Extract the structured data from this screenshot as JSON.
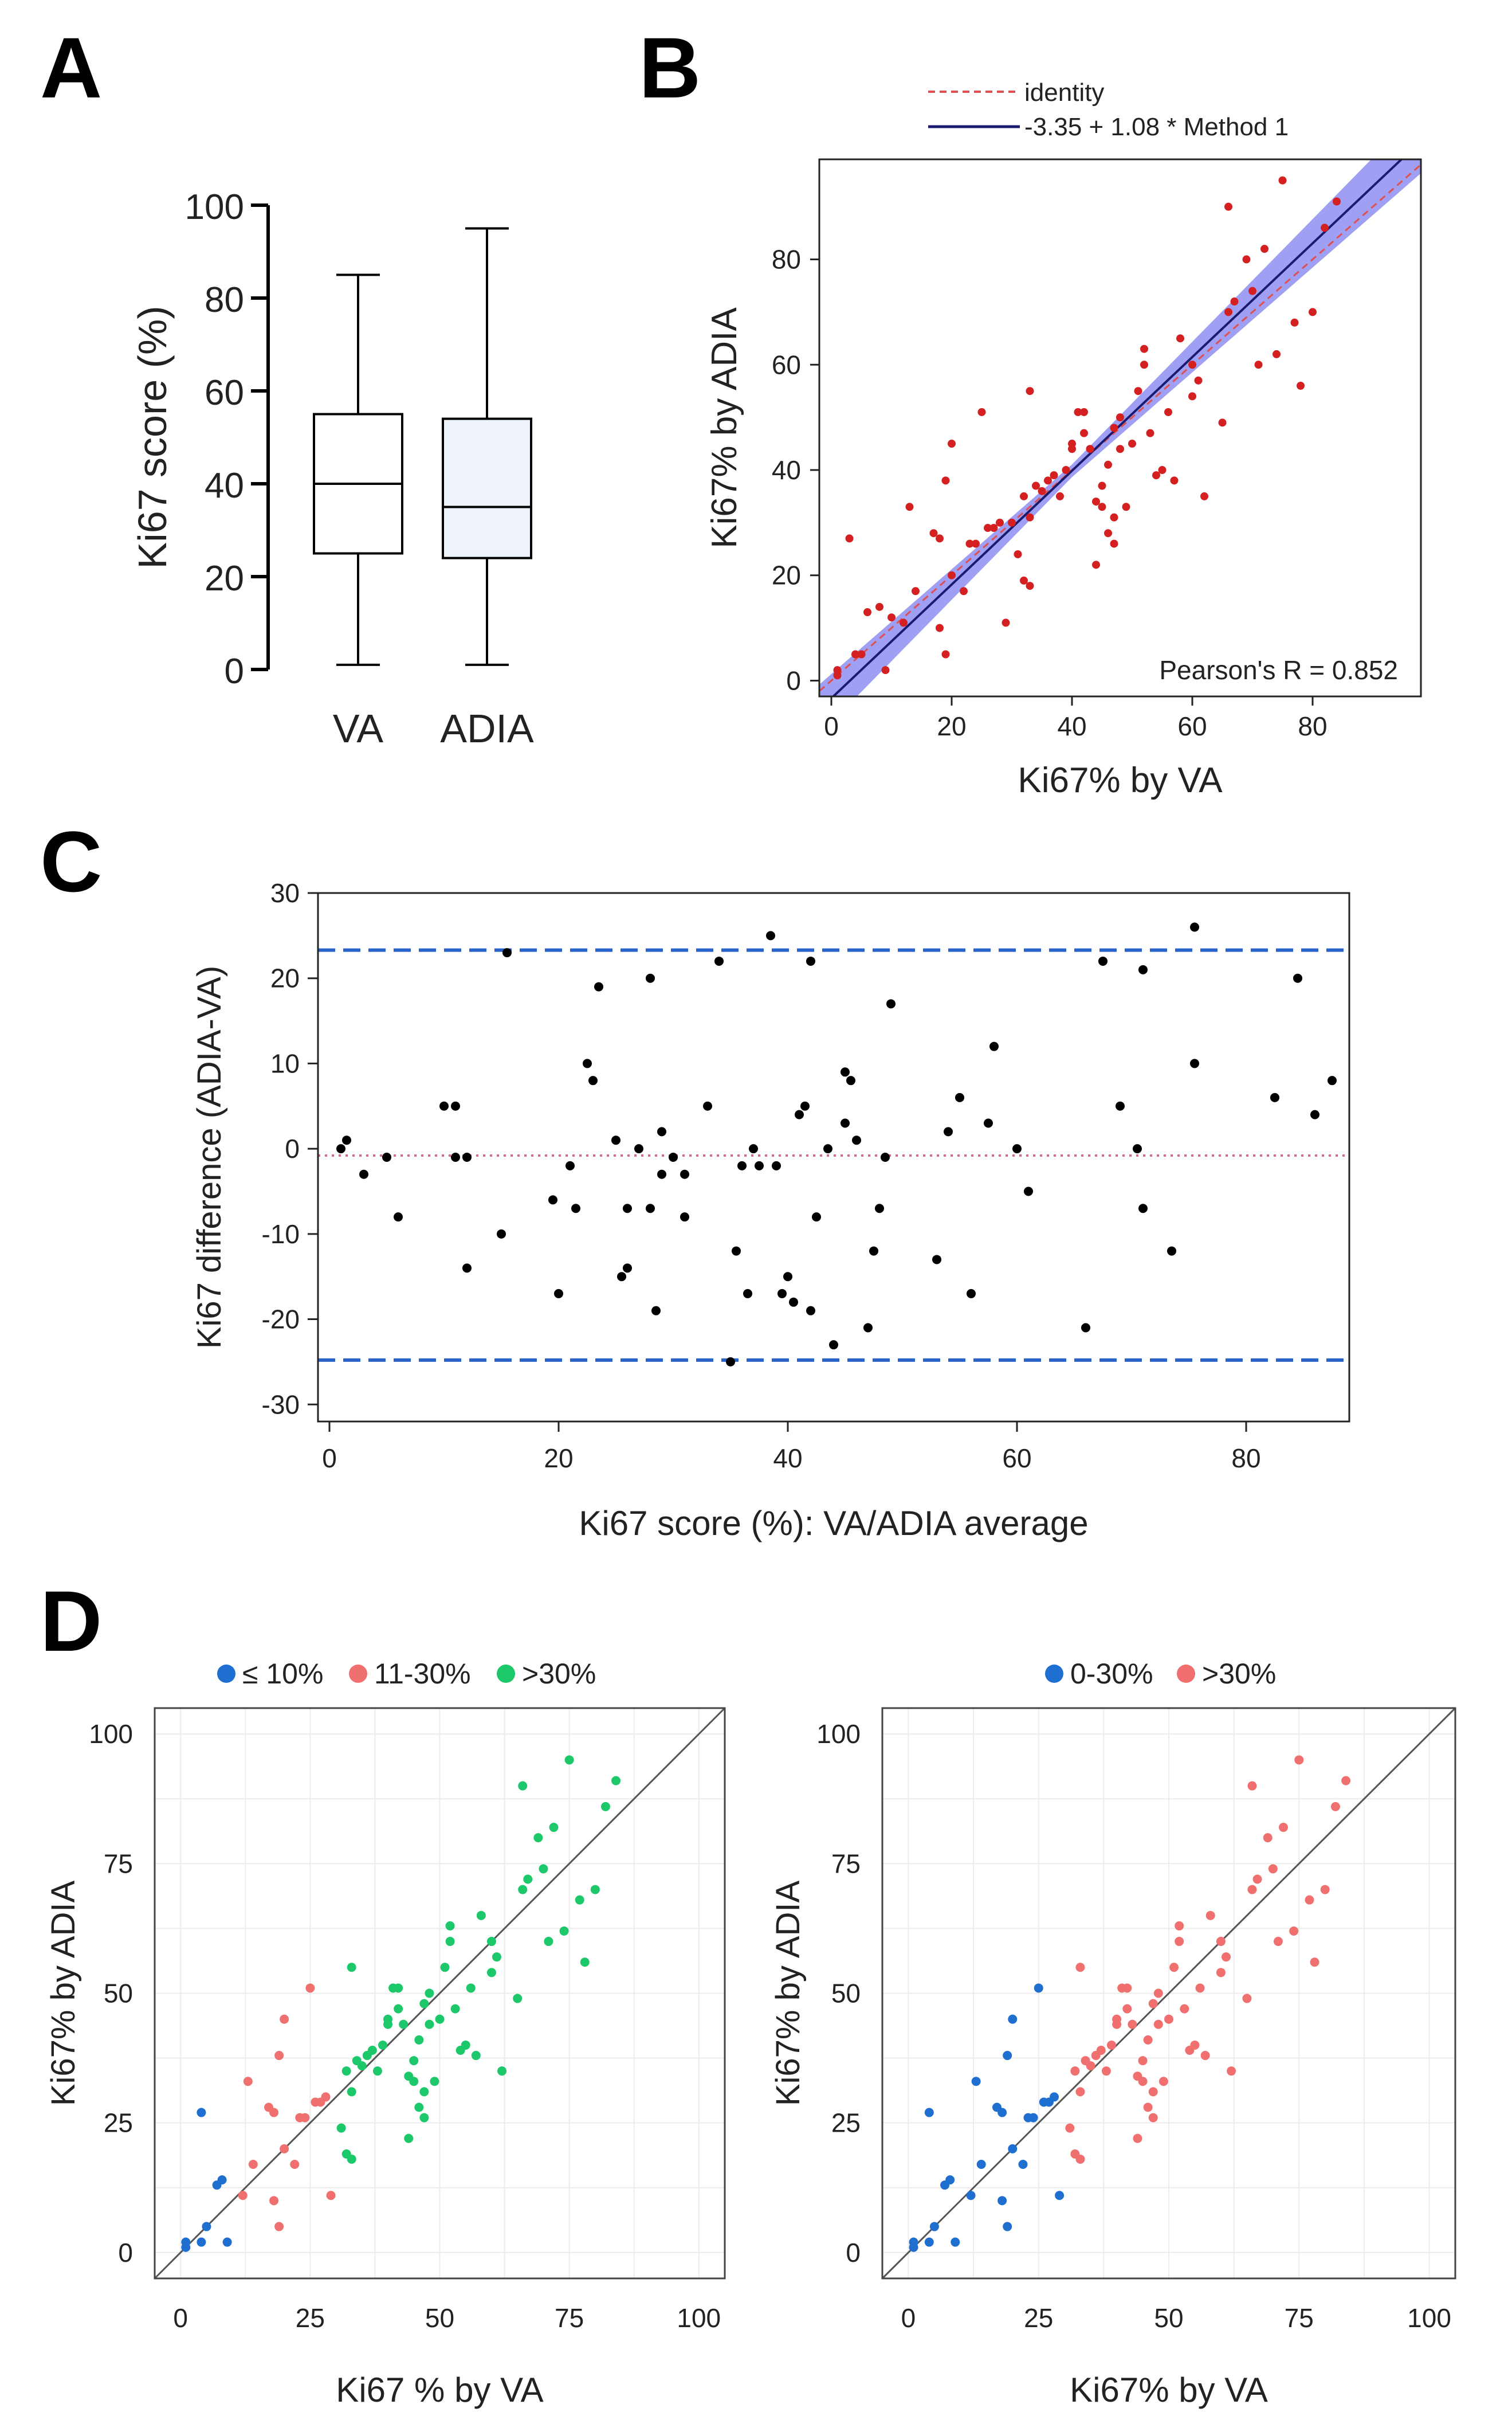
{
  "chart_data": [
    {
      "panel": "A",
      "type": "box",
      "ylabel": "Ki67 score (%)",
      "ylim": [
        0,
        100
      ],
      "yticks": [
        0,
        20,
        40,
        60,
        80,
        100
      ],
      "categories": [
        "VA",
        "ADIA"
      ],
      "boxes": [
        {
          "name": "VA",
          "min": 1,
          "q1": 25,
          "median": 40,
          "q3": 55,
          "max": 85,
          "fill": "#ffffff"
        },
        {
          "name": "ADIA",
          "min": 1,
          "q1": 24,
          "median": 35,
          "q3": 54,
          "max": 95,
          "fill": "#eef4fa"
        }
      ]
    },
    {
      "panel": "B",
      "type": "scatter",
      "xlabel": "Ki67% by VA",
      "ylabel": "Ki67% by ADIA",
      "xlim": [
        -2,
        98
      ],
      "ylim": [
        -3,
        99
      ],
      "xticks": [
        0,
        20,
        40,
        60,
        80
      ],
      "yticks": [
        0,
        20,
        40,
        60,
        80
      ],
      "legend": [
        {
          "label": "identity",
          "color": "#e05050",
          "style": "dashed"
        },
        {
          "label": "-3.35 + 1.08 * Method 1",
          "color": "#1a1a6e",
          "style": "solid"
        }
      ],
      "regression": {
        "intercept": -3.35,
        "slope": 1.08,
        "band_color": "#7f7fef"
      },
      "annotation": "Pearson's R = 0.852",
      "point_color": "#d42020",
      "x": [
        1,
        1,
        3,
        4,
        5,
        6,
        8,
        9,
        10,
        12,
        13,
        14,
        17,
        18,
        18,
        19,
        19,
        20,
        20,
        22,
        23,
        24,
        25,
        26,
        27,
        28,
        29,
        30,
        31,
        32,
        32,
        33,
        33,
        33,
        34,
        35,
        36,
        37,
        38,
        39,
        40,
        40,
        41,
        42,
        42,
        43,
        44,
        44,
        45,
        45,
        46,
        46,
        47,
        47,
        47,
        48,
        48,
        49,
        50,
        51,
        52,
        52,
        53,
        54,
        55,
        56,
        57,
        58,
        60,
        60,
        61,
        62,
        65,
        66,
        66,
        67,
        69,
        70,
        71,
        72,
        74,
        75,
        77,
        78,
        80,
        82,
        84
      ],
      "y": [
        1,
        2,
        27,
        5,
        5,
        13,
        14,
        2,
        12,
        11,
        33,
        17,
        28,
        10,
        27,
        5,
        38,
        45,
        20,
        17,
        26,
        26,
        51,
        29,
        29,
        30,
        11,
        30,
        24,
        19,
        35,
        18,
        55,
        31,
        37,
        36,
        38,
        39,
        35,
        40,
        45,
        44,
        51,
        51,
        47,
        44,
        34,
        22,
        33,
        37,
        41,
        28,
        26,
        48,
        31,
        50,
        44,
        33,
        45,
        55,
        63,
        60,
        47,
        39,
        40,
        51,
        38,
        65,
        54,
        60,
        57,
        35,
        49,
        70,
        90,
        72,
        80,
        74,
        60,
        82,
        62,
        95,
        68,
        56,
        70,
        86,
        91
      ]
    },
    {
      "panel": "C",
      "type": "scatter",
      "xlabel": "Ki67 score (%): VA/ADIA average",
      "ylabel": "Ki67 difference (ADIA-VA)",
      "xlim": [
        -1,
        89
      ],
      "ylim": [
        -32,
        30
      ],
      "xticks": [
        0,
        20,
        40,
        60,
        80
      ],
      "yticks": [
        30,
        20,
        10,
        0,
        -10,
        -20,
        -30
      ],
      "reference_lines": [
        {
          "y": 23.3,
          "color": "#2962c8",
          "style": "dashed"
        },
        {
          "y": -24.8,
          "color": "#2962c8",
          "style": "dashed"
        },
        {
          "y": -0.8,
          "color": "#d06a80",
          "style": "dotted"
        }
      ],
      "point_color": "#000000",
      "x": [
        1,
        1.5,
        3,
        5,
        6,
        10,
        11,
        11,
        12,
        12,
        15,
        15.5,
        19.5,
        20,
        21,
        21.5,
        22.5,
        23,
        23.5,
        25,
        25.5,
        26,
        26,
        27,
        28,
        28,
        28.5,
        29,
        29,
        30,
        31,
        31,
        33,
        34,
        35,
        35.5,
        36,
        36.5,
        37,
        37.5,
        38.5,
        39,
        39.5,
        40,
        40.5,
        41,
        41.5,
        42,
        42,
        42.5,
        43.5,
        44,
        45,
        45,
        45.5,
        46,
        47,
        47.5,
        48,
        48.5,
        49,
        53,
        54,
        55,
        56,
        57.5,
        58,
        60,
        61,
        66,
        67.5,
        69,
        70.5,
        71,
        71,
        73.5,
        75.5,
        75.5,
        82.5,
        84.5,
        86,
        87.5
      ],
      "y": [
        0,
        1,
        -3,
        -1,
        -8,
        5,
        5,
        -1,
        -14,
        -1,
        -10,
        23,
        -6,
        -17,
        -2,
        -7,
        10,
        8,
        19,
        1,
        -15,
        -14,
        -7,
        0,
        -7,
        20,
        -19,
        -3,
        2,
        -1,
        -8,
        -3,
        5,
        22,
        -25,
        -12,
        -2,
        -17,
        0,
        -2,
        25,
        -2,
        -17,
        -15,
        -18,
        4,
        5,
        -19,
        22,
        -8,
        0,
        -23,
        3,
        9,
        8,
        1,
        -21,
        -12,
        -7,
        -1,
        17,
        -13,
        2,
        6,
        -17,
        3,
        12,
        0,
        -5,
        -21,
        22,
        5,
        0,
        21,
        -7,
        -12,
        26,
        10,
        6,
        20,
        4,
        8
      ]
    },
    {
      "panel": "D-left",
      "type": "scatter",
      "xlabel": "Ki67 % by VA",
      "ylabel": "Ki67% by ADIA",
      "xlim": [
        -5,
        105
      ],
      "ylim": [
        -5,
        105
      ],
      "xticks": [
        0,
        25,
        50,
        75,
        100
      ],
      "yticks": [
        0,
        25,
        50,
        75,
        100
      ],
      "series": [
        {
          "name": "≤ 10%",
          "color": "#1f6fd1",
          "x": [
            1,
            1,
            4,
            4,
            5,
            7,
            8,
            9
          ],
          "y": [
            1,
            2,
            27,
            2,
            5,
            13,
            14,
            2
          ]
        },
        {
          "name": "11-30%",
          "color": "#f07070",
          "x": [
            12,
            13,
            14,
            17,
            18,
            18,
            19,
            19,
            20,
            20,
            22,
            23,
            24,
            25,
            26,
            27,
            28,
            29
          ],
          "y": [
            11,
            33,
            17,
            28,
            10,
            27,
            5,
            38,
            45,
            20,
            17,
            26,
            26,
            51,
            29,
            29,
            30,
            11
          ]
        },
        {
          "name": ">30%",
          "color": "#1dc86a",
          "x": [
            31,
            32,
            32,
            33,
            33,
            33,
            34,
            35,
            36,
            37,
            38,
            39,
            40,
            40,
            41,
            42,
            42,
            43,
            44,
            44,
            45,
            45,
            46,
            46,
            47,
            47,
            47,
            48,
            48,
            49,
            50,
            51,
            52,
            52,
            53,
            54,
            55,
            56,
            57,
            58,
            60,
            60,
            61,
            62,
            65,
            66,
            66,
            67,
            69,
            70,
            71,
            72,
            74,
            75,
            77,
            78,
            80,
            82,
            84
          ],
          "y": [
            24,
            19,
            35,
            18,
            55,
            31,
            37,
            36,
            38,
            39,
            35,
            40,
            45,
            44,
            51,
            51,
            47,
            44,
            34,
            22,
            33,
            37,
            41,
            28,
            26,
            48,
            31,
            50,
            44,
            33,
            45,
            55,
            63,
            60,
            47,
            39,
            40,
            51,
            38,
            65,
            54,
            60,
            57,
            35,
            49,
            70,
            90,
            72,
            80,
            74,
            60,
            82,
            62,
            95,
            68,
            56,
            70,
            86,
            91
          ]
        }
      ]
    },
    {
      "panel": "D-right",
      "type": "scatter",
      "xlabel": "Ki67% by VA",
      "ylabel": "Ki67% by ADIA",
      "xlim": [
        -5,
        105
      ],
      "ylim": [
        -5,
        105
      ],
      "xticks": [
        0,
        25,
        50,
        75,
        100
      ],
      "yticks": [
        0,
        25,
        50,
        75,
        100
      ],
      "series": [
        {
          "name": "0-30%",
          "color": "#1f6fd1",
          "x": [
            1,
            1,
            4,
            4,
            5,
            7,
            8,
            9,
            12,
            13,
            14,
            17,
            18,
            18,
            19,
            19,
            20,
            20,
            22,
            23,
            24,
            25,
            26,
            27,
            28,
            29
          ],
          "y": [
            1,
            2,
            27,
            2,
            5,
            13,
            14,
            2,
            11,
            33,
            17,
            28,
            10,
            27,
            5,
            38,
            45,
            20,
            17,
            26,
            26,
            51,
            29,
            29,
            30,
            11
          ]
        },
        {
          "name": ">30%",
          "color": "#f07070",
          "x": [
            31,
            32,
            32,
            33,
            33,
            33,
            34,
            35,
            36,
            37,
            38,
            39,
            40,
            40,
            41,
            42,
            42,
            43,
            44,
            44,
            45,
            45,
            46,
            46,
            47,
            47,
            47,
            48,
            48,
            49,
            50,
            51,
            52,
            52,
            53,
            54,
            55,
            56,
            57,
            58,
            60,
            60,
            61,
            62,
            65,
            66,
            66,
            67,
            69,
            70,
            71,
            72,
            74,
            75,
            77,
            78,
            80,
            82,
            84
          ],
          "y": [
            24,
            19,
            35,
            18,
            55,
            31,
            37,
            36,
            38,
            39,
            35,
            40,
            45,
            44,
            51,
            51,
            47,
            44,
            34,
            22,
            33,
            37,
            41,
            28,
            26,
            48,
            31,
            50,
            44,
            33,
            45,
            55,
            63,
            60,
            47,
            39,
            40,
            51,
            38,
            65,
            54,
            60,
            57,
            35,
            49,
            70,
            90,
            72,
            80,
            74,
            60,
            82,
            62,
            95,
            68,
            56,
            70,
            86,
            91
          ]
        }
      ]
    }
  ],
  "panel_labels": {
    "a": "A",
    "b": "B",
    "c": "C",
    "d": "D"
  }
}
